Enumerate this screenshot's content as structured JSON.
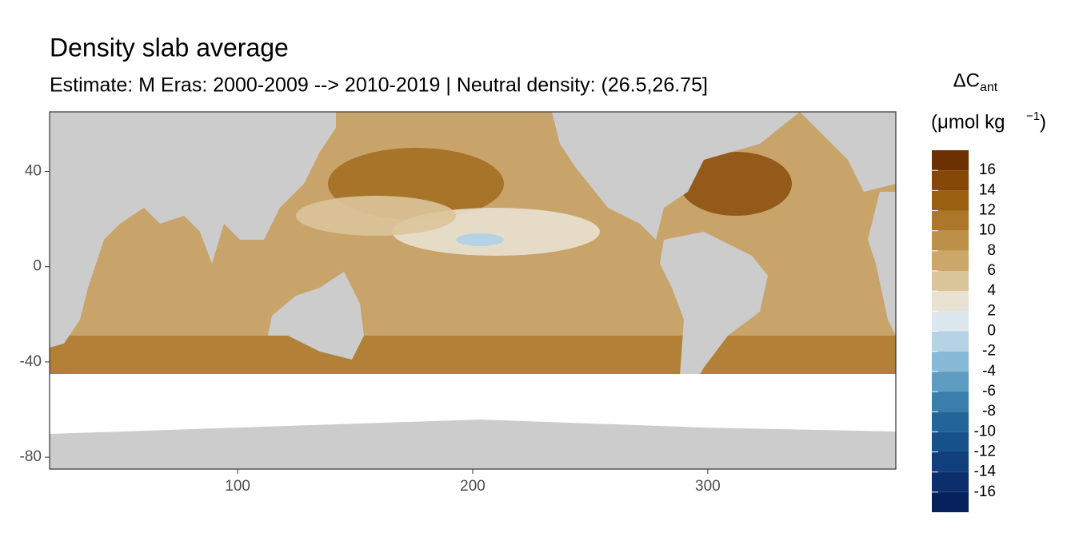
{
  "chart_data": {
    "type": "raster-map",
    "title": "Density slab average",
    "subtitle": "Estimate: M Eras: 2000-2009 --> 2010-2019 | Neutral density: (26.5,26.75]",
    "xlim": [
      20,
      380
    ],
    "xticks": [
      100,
      200,
      300
    ],
    "ylim": [
      -85,
      65
    ],
    "yticks": [
      40,
      0,
      -40,
      -80
    ],
    "legend": {
      "title": "ΔC",
      "title_sub": "ant",
      "unit": "(μmol kg",
      "unit_sup": "−1",
      "unit_end": ")",
      "breaks": [
        -18,
        -16,
        -14,
        -12,
        -10,
        -8,
        -6,
        -4,
        -2,
        0,
        2,
        4,
        6,
        8,
        10,
        12,
        14,
        16,
        18
      ],
      "colors": [
        "#06215c",
        "#0b2e6c",
        "#113e7d",
        "#17518c",
        "#226699",
        "#3a7fac",
        "#5e9cc2",
        "#88b9d6",
        "#b5d3e4",
        "#dce8ee",
        "#e9e1d2",
        "#dac49a",
        "#cba86a",
        "#bd9049",
        "#ac772a",
        "#9a600f",
        "#864706",
        "#6c2f02",
        "#561800"
      ],
      "ticks": [
        -16,
        -14,
        -12,
        -10,
        -8,
        -6,
        -4,
        -2,
        0,
        2,
        4,
        6,
        8,
        10,
        12,
        14,
        16
      ]
    }
  }
}
